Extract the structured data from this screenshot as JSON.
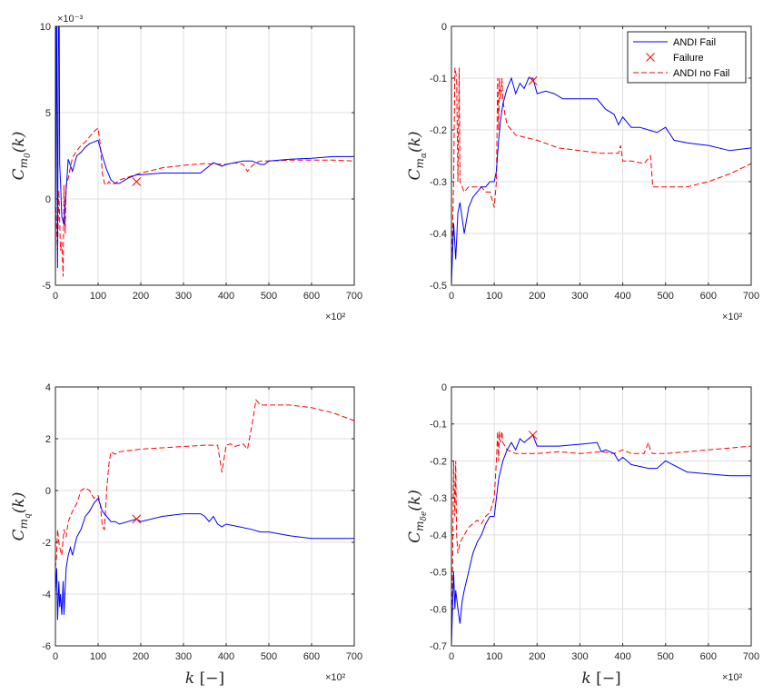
{
  "colors": {
    "andi_fail": "#0000ff",
    "andi_nofail": "#ff0000",
    "failure": "#ff0000",
    "grid": "#dfdfdf",
    "axis": "#262626"
  },
  "chart_data": [
    {
      "type": "line",
      "ylabel_base": "C",
      "ylabel_sub": "m",
      "ylabel_subsub": "0",
      "ylabel_arg": "(k)",
      "xlabel": "",
      "xlim": [
        0,
        700
      ],
      "ylim": [
        -5,
        10
      ],
      "xticks": [
        0,
        100,
        200,
        300,
        400,
        500,
        600,
        700
      ],
      "yticks": [
        -5,
        0,
        5,
        10
      ],
      "x_multiplier": "×10²",
      "y_multiplier": "×10⁻³",
      "grid": true,
      "legend": null,
      "series": [
        {
          "name": "ANDI Fail",
          "style": "solid",
          "color": "#0000ff",
          "x": [
            0,
            2,
            3,
            5,
            7,
            9,
            10,
            12,
            15,
            20,
            25,
            30,
            40,
            50,
            60,
            70,
            80,
            90,
            100,
            110,
            120,
            130,
            140,
            150,
            170,
            190,
            200,
            250,
            300,
            340,
            360,
            370,
            380,
            390,
            400,
            420,
            440,
            460,
            480,
            490,
            500,
            550,
            600,
            650,
            700
          ],
          "y": [
            -5,
            10,
            10,
            -4,
            10,
            10,
            2,
            1,
            -1,
            -1.5,
            0.5,
            2.3,
            1.6,
            2.5,
            2.7,
            3.0,
            3.2,
            3.3,
            3.4,
            2.5,
            1.7,
            1.1,
            0.9,
            0.9,
            1.2,
            1.4,
            1.4,
            1.5,
            1.5,
            1.5,
            1.9,
            2.1,
            2.0,
            1.9,
            2.0,
            2.1,
            2.2,
            2.2,
            2.0,
            2.0,
            2.2,
            2.3,
            2.35,
            2.45,
            2.45
          ]
        },
        {
          "name": "ANDI no Fail",
          "style": "dashed",
          "color": "#ff0000",
          "x": [
            0,
            5,
            8,
            12,
            15,
            18,
            20,
            23,
            25,
            30,
            40,
            50,
            60,
            70,
            80,
            90,
            100,
            105,
            110,
            115,
            120,
            125,
            130,
            140,
            150,
            175,
            200,
            250,
            300,
            350,
            400,
            420,
            440,
            450,
            460,
            470,
            480,
            500,
            550,
            600,
            650,
            700
          ],
          "y": [
            0,
            -3,
            0.5,
            -3,
            -2.5,
            -4.5,
            0.8,
            -2,
            0.8,
            1.2,
            2.4,
            2.8,
            3.1,
            3.3,
            3.6,
            3.9,
            4.1,
            3.2,
            1.5,
            0.9,
            0.8,
            1.0,
            0.85,
            0.9,
            1.1,
            1.3,
            1.5,
            1.8,
            1.95,
            2.05,
            2.0,
            2.1,
            2.0,
            1.6,
            1.9,
            2.1,
            2.2,
            2.2,
            2.25,
            2.25,
            2.25,
            2.2
          ]
        }
      ],
      "markers": [
        {
          "name": "Failure",
          "x": 190,
          "y": 1.0
        }
      ]
    },
    {
      "type": "line",
      "ylabel_base": "C",
      "ylabel_sub": "m",
      "ylabel_subsub": "α",
      "ylabel_arg": "(k)",
      "xlabel": "",
      "xlim": [
        0,
        700
      ],
      "ylim": [
        -0.5,
        0
      ],
      "xticks": [
        0,
        100,
        200,
        300,
        400,
        500,
        600,
        700
      ],
      "yticks": [
        -0.5,
        -0.4,
        -0.3,
        -0.2,
        -0.1,
        0
      ],
      "x_multiplier": "×10²",
      "y_multiplier": "",
      "grid": true,
      "legend": {
        "placement": "top-right",
        "entries": [
          "ANDI Fail",
          "Failure",
          "ANDI no Fail"
        ]
      },
      "series": [
        {
          "name": "ANDI Fail",
          "style": "solid",
          "color": "#0000ff",
          "x": [
            0,
            5,
            10,
            15,
            20,
            30,
            40,
            50,
            60,
            70,
            80,
            90,
            100,
            105,
            110,
            115,
            120,
            130,
            140,
            150,
            160,
            170,
            180,
            190,
            200,
            220,
            240,
            260,
            300,
            340,
            350,
            360,
            380,
            390,
            400,
            420,
            440,
            460,
            480,
            490,
            500,
            520,
            550,
            600,
            650,
            700
          ],
          "y": [
            -0.5,
            -0.38,
            -0.45,
            -0.36,
            -0.34,
            -0.4,
            -0.35,
            -0.33,
            -0.32,
            -0.31,
            -0.31,
            -0.3,
            -0.3,
            -0.28,
            -0.22,
            -0.18,
            -0.15,
            -0.12,
            -0.1,
            -0.13,
            -0.11,
            -0.12,
            -0.1,
            -0.1,
            -0.13,
            -0.125,
            -0.13,
            -0.14,
            -0.14,
            -0.14,
            -0.15,
            -0.16,
            -0.17,
            -0.19,
            -0.175,
            -0.195,
            -0.195,
            -0.2,
            -0.205,
            -0.2,
            -0.195,
            -0.22,
            -0.225,
            -0.23,
            -0.24,
            -0.235
          ]
        },
        {
          "name": "ANDI no Fail",
          "style": "dashed",
          "color": "#ff0000",
          "x": [
            0,
            5,
            8,
            12,
            15,
            18,
            20,
            25,
            30,
            40,
            50,
            60,
            70,
            80,
            90,
            100,
            105,
            108,
            110,
            112,
            115,
            118,
            120,
            125,
            130,
            140,
            150,
            200,
            250,
            300,
            350,
            390,
            395,
            400,
            420,
            450,
            460,
            465,
            470,
            475,
            480,
            500,
            550,
            600,
            650,
            700
          ],
          "y": [
            -0.5,
            -0.3,
            -0.08,
            -0.1,
            -0.3,
            -0.08,
            -0.3,
            -0.31,
            -0.32,
            -0.31,
            -0.31,
            -0.31,
            -0.31,
            -0.32,
            -0.32,
            -0.35,
            -0.3,
            -0.1,
            -0.2,
            -0.1,
            -0.14,
            -0.1,
            -0.14,
            -0.17,
            -0.19,
            -0.2,
            -0.21,
            -0.22,
            -0.235,
            -0.24,
            -0.245,
            -0.245,
            -0.23,
            -0.26,
            -0.26,
            -0.265,
            -0.255,
            -0.25,
            -0.31,
            -0.31,
            -0.31,
            -0.31,
            -0.31,
            -0.3,
            -0.285,
            -0.265
          ]
        }
      ],
      "markers": [
        {
          "name": "Failure",
          "x": 190,
          "y": -0.105
        }
      ]
    },
    {
      "type": "line",
      "ylabel_base": "C",
      "ylabel_sub": "m",
      "ylabel_subsub": "q",
      "ylabel_arg": "(k)",
      "xlabel": "k [−]",
      "xlim": [
        0,
        700
      ],
      "ylim": [
        -6,
        4
      ],
      "xticks": [
        0,
        100,
        200,
        300,
        400,
        500,
        600,
        700
      ],
      "yticks": [
        -6,
        -4,
        -2,
        0,
        2,
        4
      ],
      "x_multiplier": "×10²",
      "y_multiplier": "",
      "grid": true,
      "legend": null,
      "series": [
        {
          "name": "ANDI Fail",
          "style": "solid",
          "color": "#0000ff",
          "x": [
            0,
            3,
            5,
            8,
            10,
            12,
            15,
            18,
            20,
            25,
            30,
            35,
            40,
            50,
            60,
            70,
            80,
            90,
            100,
            110,
            120,
            130,
            140,
            150,
            190,
            200,
            250,
            300,
            340,
            350,
            360,
            370,
            380,
            390,
            400,
            430,
            460,
            480,
            500,
            550,
            600,
            650,
            700
          ],
          "y": [
            -4,
            -3,
            -5,
            -3.5,
            -4.5,
            -4,
            -4.8,
            -3.5,
            -4.8,
            -3,
            -2.5,
            -2.2,
            -2.5,
            -1.8,
            -1.5,
            -1.0,
            -0.8,
            -0.5,
            -0.3,
            -0.8,
            -1.0,
            -1.2,
            -1.2,
            -1.3,
            -1.1,
            -1.2,
            -1.0,
            -0.9,
            -0.9,
            -1.0,
            -1.2,
            -1.0,
            -1.3,
            -1.4,
            -1.3,
            -1.4,
            -1.5,
            -1.6,
            -1.6,
            -1.75,
            -1.85,
            -1.85,
            -1.85
          ]
        },
        {
          "name": "ANDI no Fail",
          "style": "dashed",
          "color": "#ff0000",
          "x": [
            0,
            3,
            5,
            8,
            10,
            15,
            20,
            25,
            30,
            40,
            50,
            60,
            70,
            80,
            90,
            100,
            105,
            110,
            115,
            120,
            125,
            130,
            140,
            150,
            200,
            250,
            300,
            350,
            380,
            390,
            400,
            410,
            420,
            440,
            450,
            460,
            470,
            480,
            500,
            550,
            600,
            650,
            700
          ],
          "y": [
            -3,
            -2.5,
            -1.5,
            -2.0,
            -2.2,
            -2.5,
            -1.5,
            -1.8,
            -1.2,
            -0.8,
            -0.5,
            0.0,
            0.1,
            0.0,
            -0.3,
            -0.2,
            -0.5,
            -1.4,
            -1.5,
            0.0,
            1.0,
            1.5,
            1.4,
            1.5,
            1.6,
            1.65,
            1.7,
            1.75,
            1.75,
            0.7,
            1.75,
            1.8,
            1.7,
            1.8,
            1.6,
            2.5,
            3.5,
            3.3,
            3.3,
            3.3,
            3.2,
            3.0,
            2.7
          ]
        }
      ],
      "markers": [
        {
          "name": "Failure",
          "x": 190,
          "y": -1.1
        }
      ]
    },
    {
      "type": "line",
      "ylabel_base": "C",
      "ylabel_sub": "m",
      "ylabel_subsub": "δe",
      "ylabel_arg": "(k)",
      "xlabel": "k [−]",
      "xlim": [
        0,
        700
      ],
      "ylim": [
        -0.7,
        0
      ],
      "xticks": [
        0,
        100,
        200,
        300,
        400,
        500,
        600,
        700
      ],
      "yticks": [
        -0.7,
        -0.6,
        -0.5,
        -0.4,
        -0.3,
        -0.2,
        -0.1,
        0
      ],
      "x_multiplier": "×10²",
      "y_multiplier": "",
      "grid": true,
      "legend": null,
      "series": [
        {
          "name": "ANDI Fail",
          "style": "solid",
          "color": "#0000ff",
          "x": [
            0,
            5,
            8,
            10,
            15,
            20,
            25,
            30,
            40,
            50,
            60,
            70,
            80,
            90,
            100,
            110,
            120,
            130,
            140,
            150,
            160,
            170,
            190,
            200,
            250,
            300,
            340,
            350,
            360,
            380,
            390,
            400,
            410,
            420,
            440,
            460,
            480,
            500,
            550,
            600,
            650,
            700
          ],
          "y": [
            -0.7,
            -0.5,
            -0.6,
            -0.55,
            -0.6,
            -0.64,
            -0.58,
            -0.55,
            -0.5,
            -0.45,
            -0.42,
            -0.4,
            -0.37,
            -0.35,
            -0.35,
            -0.25,
            -0.2,
            -0.17,
            -0.15,
            -0.17,
            -0.14,
            -0.15,
            -0.13,
            -0.16,
            -0.16,
            -0.155,
            -0.15,
            -0.175,
            -0.17,
            -0.18,
            -0.2,
            -0.19,
            -0.2,
            -0.21,
            -0.215,
            -0.22,
            -0.22,
            -0.2,
            -0.23,
            -0.235,
            -0.24,
            -0.24
          ]
        },
        {
          "name": "ANDI no Fail",
          "style": "dashed",
          "color": "#ff0000",
          "x": [
            0,
            3,
            5,
            8,
            10,
            12,
            15,
            20,
            30,
            40,
            50,
            60,
            70,
            80,
            90,
            100,
            105,
            108,
            110,
            112,
            115,
            118,
            120,
            125,
            130,
            140,
            150,
            200,
            250,
            300,
            350,
            380,
            400,
            420,
            450,
            460,
            465,
            470,
            500,
            550,
            600,
            650,
            700
          ],
          "y": [
            -0.7,
            -0.45,
            -0.2,
            -0.35,
            -0.2,
            -0.4,
            -0.45,
            -0.42,
            -0.4,
            -0.38,
            -0.37,
            -0.36,
            -0.37,
            -0.35,
            -0.34,
            -0.3,
            -0.2,
            -0.12,
            -0.2,
            -0.12,
            -0.15,
            -0.12,
            -0.15,
            -0.16,
            -0.17,
            -0.175,
            -0.18,
            -0.18,
            -0.175,
            -0.18,
            -0.175,
            -0.18,
            -0.17,
            -0.18,
            -0.18,
            -0.15,
            -0.175,
            -0.18,
            -0.18,
            -0.175,
            -0.17,
            -0.165,
            -0.16
          ]
        }
      ],
      "markers": [
        {
          "name": "Failure",
          "x": 190,
          "y": -0.13
        }
      ]
    }
  ]
}
